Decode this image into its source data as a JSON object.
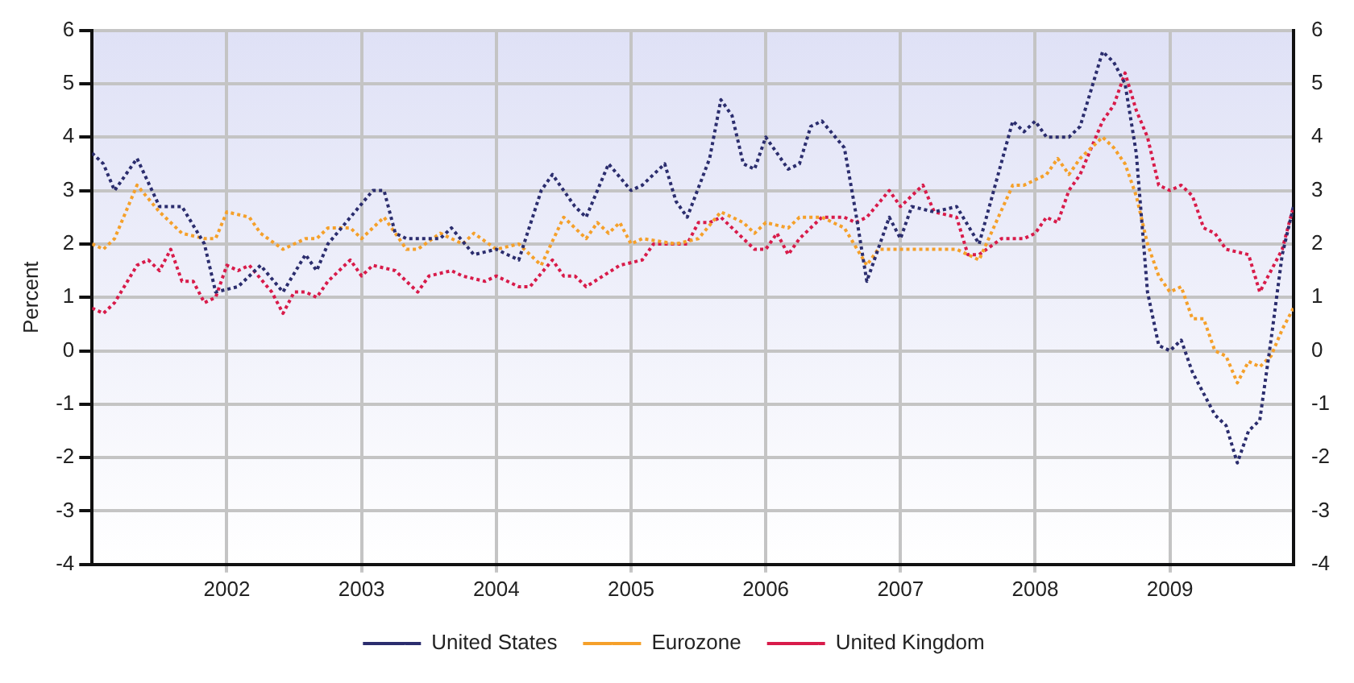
{
  "chart_data": {
    "type": "line",
    "ylabel": "Percent",
    "xlim": [
      "2001-01",
      "2009-12"
    ],
    "xticks": [
      {
        "value": "2002-01",
        "label": "2002"
      },
      {
        "value": "2003-01",
        "label": "2003"
      },
      {
        "value": "2004-01",
        "label": "2004"
      },
      {
        "value": "2005-01",
        "label": "2005"
      },
      {
        "value": "2006-01",
        "label": "2006"
      },
      {
        "value": "2007-01",
        "label": "2007"
      },
      {
        "value": "2008-01",
        "label": "2008"
      },
      {
        "value": "2009-01",
        "label": "2009"
      }
    ],
    "ylim": [
      -4,
      6
    ],
    "yticks": [
      -4,
      -3,
      -2,
      -1,
      0,
      1,
      2,
      3,
      4,
      5,
      6
    ],
    "y2lim": [
      -4,
      6
    ],
    "y2ticks": [
      -4,
      -3,
      -2,
      -1,
      0,
      1,
      2,
      3,
      4,
      5,
      6
    ],
    "grid": true,
    "legend": "bottom",
    "marker": "none",
    "line_style": "dotted",
    "series": [
      {
        "name": "United States",
        "color": "#2b2d6e",
        "x": [
          "2001-01",
          "2001-02",
          "2001-03",
          "2001-05",
          "2001-07",
          "2001-09",
          "2001-11",
          "2001-12",
          "2002-02",
          "2002-04",
          "2002-06",
          "2002-08",
          "2002-09",
          "2002-10",
          "2002-12",
          "2003-02",
          "2003-03",
          "2003-04",
          "2003-05",
          "2003-08",
          "2003-09",
          "2003-11",
          "2004-01",
          "2004-03",
          "2004-05",
          "2004-06",
          "2004-08",
          "2004-09",
          "2004-11",
          "2005-01",
          "2005-02",
          "2005-04",
          "2005-05",
          "2005-06",
          "2005-08",
          "2005-09",
          "2005-10",
          "2005-11",
          "2005-12",
          "2006-01",
          "2006-03",
          "2006-04",
          "2006-05",
          "2006-06",
          "2006-08",
          "2006-09",
          "2006-10",
          "2006-12",
          "2007-01",
          "2007-02",
          "2007-04",
          "2007-06",
          "2007-08",
          "2007-11",
          "2007-12",
          "2008-01",
          "2008-02",
          "2008-04",
          "2008-05",
          "2008-07",
          "2008-08",
          "2008-09",
          "2008-10",
          "2008-11",
          "2008-12",
          "2009-01",
          "2009-02",
          "2009-03",
          "2009-05",
          "2009-06",
          "2009-07",
          "2009-08",
          "2009-09",
          "2009-10",
          "2009-11",
          "2009-12"
        ],
        "values": [
          3.7,
          3.5,
          3.0,
          3.6,
          2.7,
          2.7,
          2.0,
          1.1,
          1.2,
          1.6,
          1.1,
          1.8,
          1.5,
          2.0,
          2.5,
          3.0,
          3.0,
          2.2,
          2.1,
          2.1,
          2.3,
          1.8,
          1.9,
          1.7,
          3.0,
          3.3,
          2.7,
          2.5,
          3.5,
          3.0,
          3.1,
          3.5,
          2.8,
          2.5,
          3.6,
          4.7,
          4.4,
          3.5,
          3.4,
          4.0,
          3.4,
          3.5,
          4.2,
          4.3,
          3.8,
          2.6,
          1.3,
          2.5,
          2.1,
          2.7,
          2.6,
          2.7,
          2.0,
          4.3,
          4.1,
          4.3,
          4.0,
          4.0,
          4.2,
          5.6,
          5.4,
          5.0,
          3.7,
          1.1,
          0.1,
          0.0,
          0.2,
          -0.4,
          -1.2,
          -1.4,
          -2.1,
          -1.5,
          -1.3,
          0.2,
          1.8,
          2.7
        ]
      },
      {
        "name": "Eurozone",
        "color": "#f5a02a",
        "x": [
          "2001-01",
          "2001-02",
          "2001-03",
          "2001-05",
          "2001-07",
          "2001-09",
          "2001-11",
          "2001-12",
          "2002-01",
          "2002-03",
          "2002-04",
          "2002-06",
          "2002-08",
          "2002-09",
          "2002-10",
          "2002-12",
          "2003-01",
          "2003-03",
          "2003-05",
          "2003-06",
          "2003-08",
          "2003-10",
          "2003-11",
          "2004-01",
          "2004-03",
          "2004-05",
          "2004-07",
          "2004-08",
          "2004-09",
          "2004-10",
          "2004-11",
          "2004-12",
          "2005-01",
          "2005-02",
          "2005-05",
          "2005-07",
          "2005-09",
          "2005-11",
          "2005-12",
          "2006-01",
          "2006-03",
          "2006-04",
          "2006-06",
          "2006-08",
          "2006-10",
          "2006-11",
          "2006-12",
          "2007-03",
          "2007-06",
          "2007-08",
          "2007-11",
          "2007-12",
          "2008-01",
          "2008-02",
          "2008-03",
          "2008-04",
          "2008-05",
          "2008-07",
          "2008-08",
          "2008-09",
          "2008-10",
          "2008-11",
          "2008-12",
          "2009-01",
          "2009-02",
          "2009-03",
          "2009-04",
          "2009-05",
          "2009-06",
          "2009-07",
          "2009-08",
          "2009-09",
          "2009-10",
          "2009-11",
          "2009-12"
        ],
        "values": [
          2.0,
          1.9,
          2.1,
          3.1,
          2.6,
          2.2,
          2.1,
          2.1,
          2.6,
          2.5,
          2.2,
          1.9,
          2.1,
          2.1,
          2.3,
          2.3,
          2.1,
          2.5,
          1.9,
          1.9,
          2.2,
          2.0,
          2.2,
          1.9,
          2.0,
          1.6,
          2.5,
          2.3,
          2.1,
          2.4,
          2.2,
          2.4,
          2.0,
          2.1,
          2.0,
          2.1,
          2.6,
          2.4,
          2.2,
          2.4,
          2.3,
          2.5,
          2.5,
          2.3,
          1.6,
          1.9,
          1.9,
          1.9,
          1.9,
          1.7,
          3.1,
          3.1,
          3.2,
          3.3,
          3.6,
          3.3,
          3.6,
          4.0,
          3.8,
          3.5,
          2.9,
          2.0,
          1.4,
          1.1,
          1.2,
          0.6,
          0.6,
          0.0,
          -0.1,
          -0.6,
          -0.2,
          -0.3,
          -0.1,
          0.4,
          0.8
        ]
      },
      {
        "name": "United Kingdom",
        "color": "#d81b4a",
        "x": [
          "2001-01",
          "2001-02",
          "2001-03",
          "2001-05",
          "2001-06",
          "2001-07",
          "2001-08",
          "2001-09",
          "2001-10",
          "2001-11",
          "2001-12",
          "2002-01",
          "2002-02",
          "2002-03",
          "2002-05",
          "2002-06",
          "2002-07",
          "2002-08",
          "2002-09",
          "2002-10",
          "2002-12",
          "2003-01",
          "2003-02",
          "2003-04",
          "2003-06",
          "2003-07",
          "2003-09",
          "2003-10",
          "2003-12",
          "2004-01",
          "2004-03",
          "2004-04",
          "2004-06",
          "2004-07",
          "2004-08",
          "2004-09",
          "2004-12",
          "2005-02",
          "2005-03",
          "2005-06",
          "2005-07",
          "2005-08",
          "2005-09",
          "2005-12",
          "2006-01",
          "2006-02",
          "2006-03",
          "2006-04",
          "2006-06",
          "2006-08",
          "2006-09",
          "2006-10",
          "2006-12",
          "2007-01",
          "2007-03",
          "2007-04",
          "2007-06",
          "2007-07",
          "2007-08",
          "2007-10",
          "2007-12",
          "2008-01",
          "2008-02",
          "2008-03",
          "2008-04",
          "2008-05",
          "2008-07",
          "2008-08",
          "2008-09",
          "2008-10",
          "2008-11",
          "2008-12",
          "2009-01",
          "2009-02",
          "2009-03",
          "2009-04",
          "2009-05",
          "2009-06",
          "2009-08",
          "2009-09",
          "2009-10",
          "2009-11",
          "2009-12"
        ],
        "values": [
          0.8,
          0.7,
          0.9,
          1.6,
          1.7,
          1.5,
          1.9,
          1.3,
          1.3,
          0.9,
          1.0,
          1.6,
          1.5,
          1.6,
          1.1,
          0.7,
          1.1,
          1.1,
          1.0,
          1.3,
          1.7,
          1.4,
          1.6,
          1.5,
          1.1,
          1.4,
          1.5,
          1.4,
          1.3,
          1.4,
          1.2,
          1.2,
          1.7,
          1.4,
          1.4,
          1.2,
          1.6,
          1.7,
          2.0,
          2.0,
          2.4,
          2.4,
          2.5,
          1.9,
          1.9,
          2.2,
          1.8,
          2.1,
          2.5,
          2.5,
          2.4,
          2.5,
          3.0,
          2.7,
          3.1,
          2.6,
          2.5,
          1.8,
          1.8,
          2.1,
          2.1,
          2.2,
          2.5,
          2.4,
          3.0,
          3.3,
          4.3,
          4.6,
          5.2,
          4.5,
          4.0,
          3.1,
          3.0,
          3.1,
          2.9,
          2.3,
          2.2,
          1.9,
          1.8,
          1.1,
          1.5,
          1.9,
          2.7
        ]
      }
    ]
  }
}
